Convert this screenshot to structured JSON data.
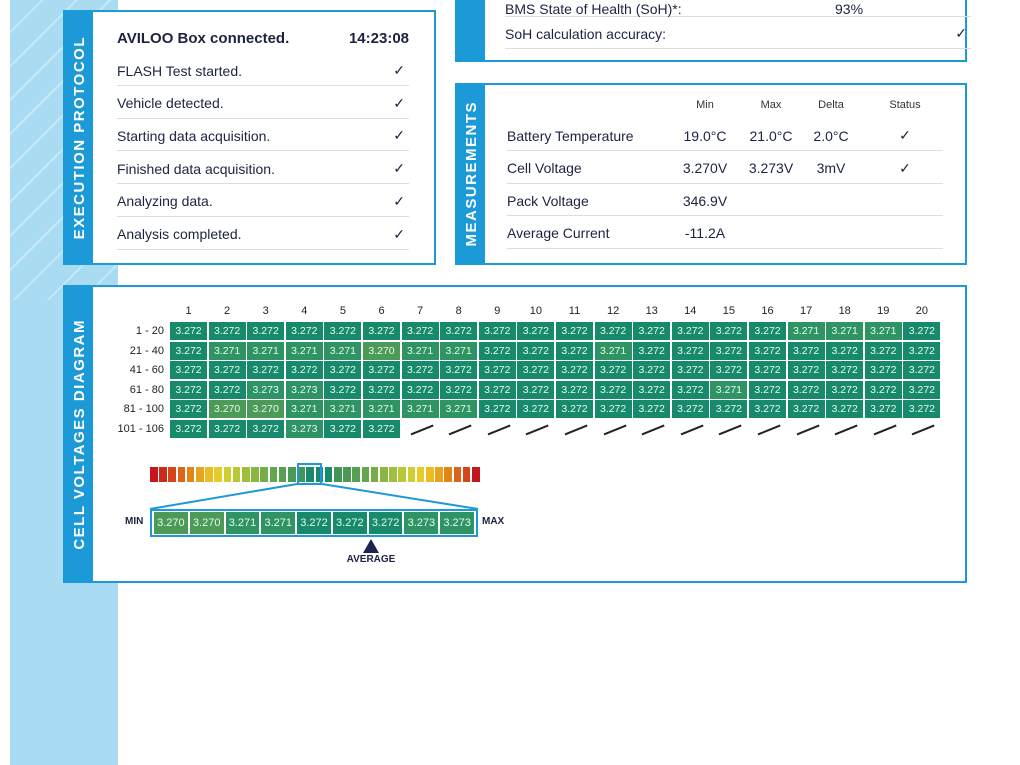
{
  "soh_panel": {
    "rows": [
      {
        "label": "BMS State of Health (SoH)*:",
        "value": "93%"
      },
      {
        "label": "SoH calculation accuracy:",
        "value": "✓"
      }
    ]
  },
  "protocol": {
    "title": "EXECUTION PROTOCOL",
    "header": "AVILOO Box connected.",
    "time": "14:23:08",
    "steps": [
      "FLASH Test started.",
      "Vehicle detected.",
      "Starting data acquisition.",
      "Finished data acquisition.",
      "Analyzing data.",
      "Analysis completed."
    ],
    "check": "✓"
  },
  "measurements": {
    "title": "MEASUREMENTS",
    "columns": [
      "Min",
      "Max",
      "Delta",
      "Status"
    ],
    "rows": [
      {
        "label": "Battery Temperature",
        "min": "19.0°C",
        "max": "21.0°C",
        "delta": "2.0°C",
        "status": "✓"
      },
      {
        "label": "Cell Voltage",
        "min": "3.270V",
        "max": "3.273V",
        "delta": "3mV",
        "status": "✓"
      },
      {
        "label": "Pack Voltage",
        "min": "346.9V",
        "max": "",
        "delta": "",
        "status": ""
      },
      {
        "label": "Average Current",
        "min": "-11.2A",
        "max": "",
        "delta": "",
        "status": ""
      }
    ]
  },
  "cells": {
    "title": "CELL VOLTAGES DIAGRAM",
    "columns": [
      "1",
      "2",
      "3",
      "4",
      "5",
      "6",
      "7",
      "8",
      "9",
      "10",
      "11",
      "12",
      "13",
      "14",
      "15",
      "16",
      "17",
      "18",
      "19",
      "20"
    ],
    "row_labels": [
      "1 - 20",
      "21 - 40",
      "41 - 60",
      "61 - 80",
      "81 - 100",
      "101 - 106"
    ],
    "values": [
      [
        "3.272",
        "3.272",
        "3.272",
        "3.272",
        "3.272",
        "3.272",
        "3.272",
        "3.272",
        "3.272",
        "3.272",
        "3.272",
        "3.272",
        "3.272",
        "3.272",
        "3.272",
        "3.272",
        "3.271",
        "3.271",
        "3.271",
        "3.272"
      ],
      [
        "3.272",
        "3.271",
        "3.271",
        "3.271",
        "3.271",
        "3.270",
        "3.271",
        "3.271",
        "3.272",
        "3.272",
        "3.272",
        "3.271",
        "3.272",
        "3.272",
        "3.272",
        "3.272",
        "3.272",
        "3.272",
        "3.272",
        "3.272"
      ],
      [
        "3.272",
        "3.272",
        "3.272",
        "3.272",
        "3.272",
        "3.272",
        "3.272",
        "3.272",
        "3.272",
        "3.272",
        "3.272",
        "3.272",
        "3.272",
        "3.272",
        "3.272",
        "3.272",
        "3.272",
        "3.272",
        "3.272",
        "3.272"
      ],
      [
        "3.272",
        "3.272",
        "3.273",
        "3.273",
        "3.272",
        "3.272",
        "3.272",
        "3.272",
        "3.272",
        "3.272",
        "3.272",
        "3.272",
        "3.272",
        "3.272",
        "3.271",
        "3.272",
        "3.272",
        "3.272",
        "3.272",
        "3.272"
      ],
      [
        "3.272",
        "3.270",
        "3.270",
        "3.271",
        "3.271",
        "3.271",
        "3.271",
        "3.271",
        "3.272",
        "3.272",
        "3.272",
        "3.272",
        "3.272",
        "3.272",
        "3.272",
        "3.272",
        "3.272",
        "3.272",
        "3.272",
        "3.272"
      ],
      [
        "3.272",
        "3.272",
        "3.272",
        "3.273",
        "3.272",
        "3.272"
      ]
    ],
    "legend": {
      "min_label": "MIN",
      "max_label": "MAX",
      "average_label": "AVERAGE",
      "scale": [
        "3.270",
        "3.270",
        "3.271",
        "3.271",
        "3.272",
        "3.272",
        "3.272",
        "3.273",
        "3.273"
      ]
    },
    "colors": {
      "3.270": "#4c9a57",
      "3.271": "#2f9463",
      "3.272": "#178a6c",
      "3.273": "#2d9466"
    }
  }
}
